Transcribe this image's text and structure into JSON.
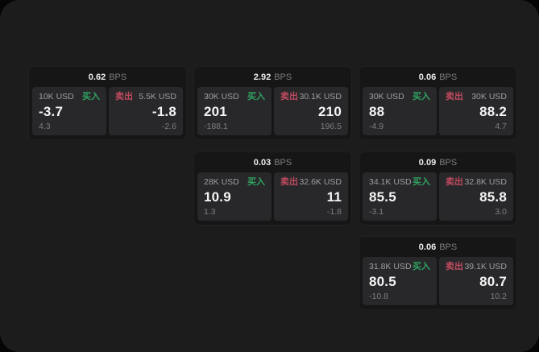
{
  "labels": {
    "bps_unit": "BPS",
    "buy": "买入",
    "sell": "卖出"
  },
  "colors": {
    "background": "#050506",
    "surface": "#1c1c1d",
    "card": "#161617",
    "panel": "#28282b",
    "buy_green": "#2fa35f",
    "sell_red": "#bf4a5e",
    "text_primary": "#f4f4f4",
    "text_muted": "#9e9e9e",
    "text_dim": "#7e7e7e"
  },
  "cards": [
    {
      "bps": "0.62",
      "buy": {
        "amount": "10K USD",
        "value": "-3.7",
        "sub": "4.3"
      },
      "sell": {
        "amount": "5.5K USD",
        "value": "-1.8",
        "sub": "-2.6"
      }
    },
    {
      "bps": "2.92",
      "buy": {
        "amount": "30K USD",
        "value": "201",
        "sub": "-188.1"
      },
      "sell": {
        "amount": "30.1K USD",
        "value": "210",
        "sub": "196.5"
      }
    },
    {
      "bps": "0.06",
      "buy": {
        "amount": "30K USD",
        "value": "88",
        "sub": "-4.9"
      },
      "sell": {
        "amount": "30K USD",
        "value": "88.2",
        "sub": "4.7"
      }
    },
    {
      "bps": "0.03",
      "buy": {
        "amount": "28K USD",
        "value": "10.9",
        "sub": "1.3"
      },
      "sell": {
        "amount": "32.6K USD",
        "value": "11",
        "sub": "-1.8"
      }
    },
    {
      "bps": "0.09",
      "buy": {
        "amount": "34.1K USD",
        "value": "85.5",
        "sub": "-3.1"
      },
      "sell": {
        "amount": "32.8K USD",
        "value": "85.8",
        "sub": "3.0"
      }
    },
    {
      "bps": "0.06",
      "buy": {
        "amount": "31.8K USD",
        "value": "80.5",
        "sub": "-10.8"
      },
      "sell": {
        "amount": "39.1K USD",
        "value": "80.7",
        "sub": "10.2"
      }
    }
  ]
}
